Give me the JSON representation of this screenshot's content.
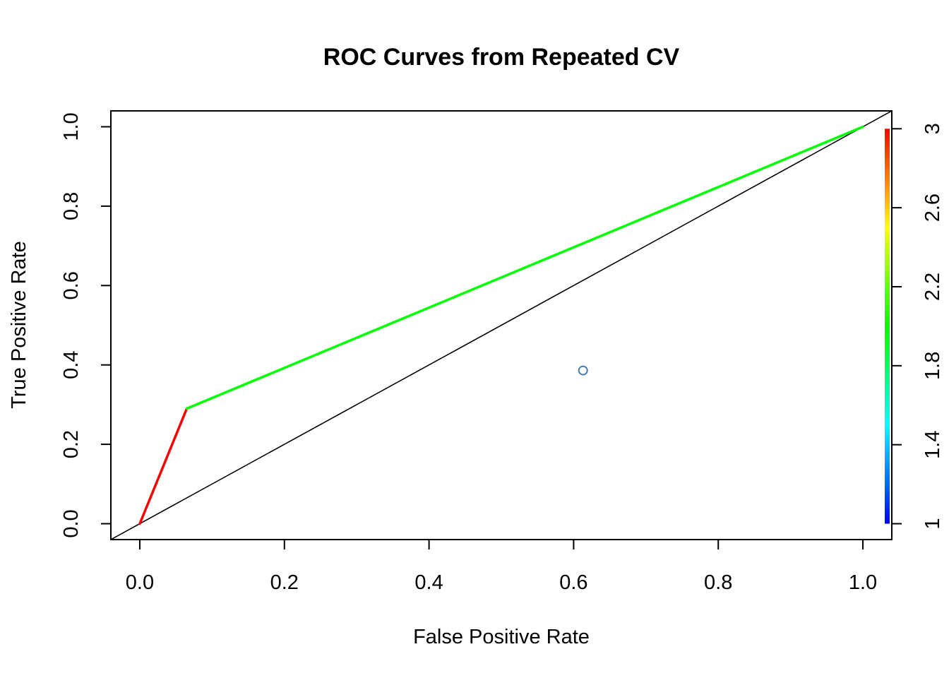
{
  "chart_data": {
    "type": "line",
    "title": "ROC Curves from Repeated CV",
    "xlabel": "False Positive Rate",
    "ylabel": "True Positive Rate",
    "xlim": [
      -0.04,
      1.04
    ],
    "ylim": [
      -0.04,
      1.04
    ],
    "x_ticks": [
      "0.0",
      "0.2",
      "0.4",
      "0.6",
      "0.8",
      "1.0"
    ],
    "y_ticks": [
      "0.0",
      "0.2",
      "0.4",
      "0.6",
      "0.8",
      "1.0"
    ],
    "x_tick_values": [
      0,
      0.2,
      0.4,
      0.6,
      0.8,
      1.0
    ],
    "y_tick_values": [
      0,
      0.2,
      0.4,
      0.6,
      0.8,
      1.0
    ],
    "roc_curve": {
      "points": [
        {
          "x": 0.0,
          "y": 0.0,
          "cutoff": 3
        },
        {
          "x": 0.065,
          "y": 0.29,
          "cutoff": 2
        },
        {
          "x": 1.0,
          "y": 1.0,
          "cutoff": 1
        }
      ],
      "segment_colors": [
        "#ff0000",
        "#00ff00"
      ]
    },
    "diagonal": {
      "x": [
        -0.04,
        1.04
      ],
      "y": [
        -0.04,
        1.04
      ],
      "color": "#000000"
    },
    "marker": {
      "x": 0.613,
      "y": 0.386,
      "color": "#4682b4"
    },
    "colorkey": {
      "range": [
        1,
        3
      ],
      "ticks": [
        "1",
        "1.4",
        "1.8",
        "2.2",
        "2.6",
        "3"
      ],
      "tick_values": [
        1,
        1.4,
        1.8,
        2.2,
        2.6,
        3
      ],
      "colors": [
        "#0000ff",
        "#00ffff",
        "#00ff00",
        "#ffff00",
        "#ff0000"
      ]
    },
    "grid": false
  }
}
